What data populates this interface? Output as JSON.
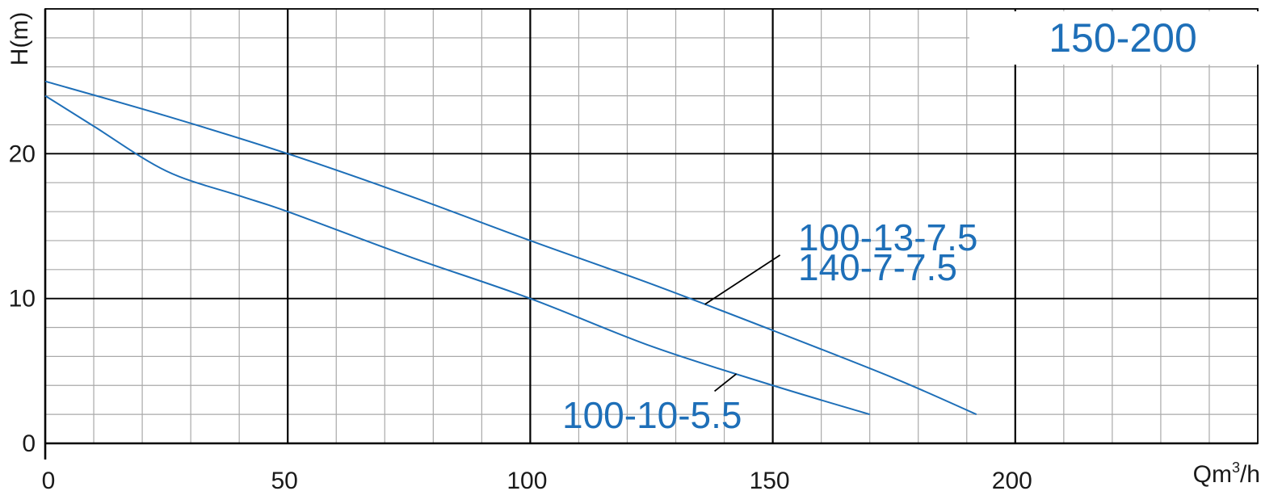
{
  "chart_data": {
    "type": "line",
    "title": "150-200",
    "xlabel": "Qm³/h",
    "xlabel_base": "Qm",
    "xlabel_sup": "3",
    "xlabel_tail": "/h",
    "ylabel": "H(m)",
    "xlim": [
      0,
      250
    ],
    "ylim": [
      0,
      30
    ],
    "x_ticks": [
      {
        "value": 0,
        "label": "0"
      },
      {
        "value": 50,
        "label": "50"
      },
      {
        "value": 100,
        "label": "100"
      },
      {
        "value": 150,
        "label": "150"
      },
      {
        "value": 200,
        "label": "200"
      }
    ],
    "y_ticks": [
      {
        "value": 0,
        "label": "0"
      },
      {
        "value": 10,
        "label": "10"
      },
      {
        "value": 20,
        "label": "20"
      }
    ],
    "grid": true,
    "series": [
      {
        "name": "100-13-7.5 / 140-7-7.5",
        "x": [
          0,
          25,
          50,
          75,
          100,
          125,
          150,
          175,
          192
        ],
        "y": [
          25,
          22.6,
          20,
          17.1,
          14,
          11,
          7.8,
          4.5,
          2
        ]
      },
      {
        "name": "100-10-5.5",
        "x": [
          0,
          10,
          25,
          40,
          50,
          75,
          100,
          125,
          150,
          170
        ],
        "y": [
          24,
          21.9,
          18.8,
          17.1,
          16,
          12.9,
          10,
          6.7,
          4,
          2
        ]
      }
    ],
    "annotations": [
      {
        "text": "100-13-7.5",
        "leader_from": [
          151.5,
          13
        ],
        "leader_to": [
          136,
          9.6
        ]
      },
      {
        "text": "140-7-7.5"
      },
      {
        "text": "100-10-5.5",
        "leader_from": [
          138,
          3.6
        ],
        "leader_to": [
          142.5,
          4.8
        ]
      }
    ]
  },
  "colors": {
    "curve": "#1e6fb8",
    "label": "#1e6fb8",
    "major_grid": "#000000",
    "minor_grid": "#a9a9a9",
    "leader": "#000000",
    "text": "#1a1a1a"
  }
}
